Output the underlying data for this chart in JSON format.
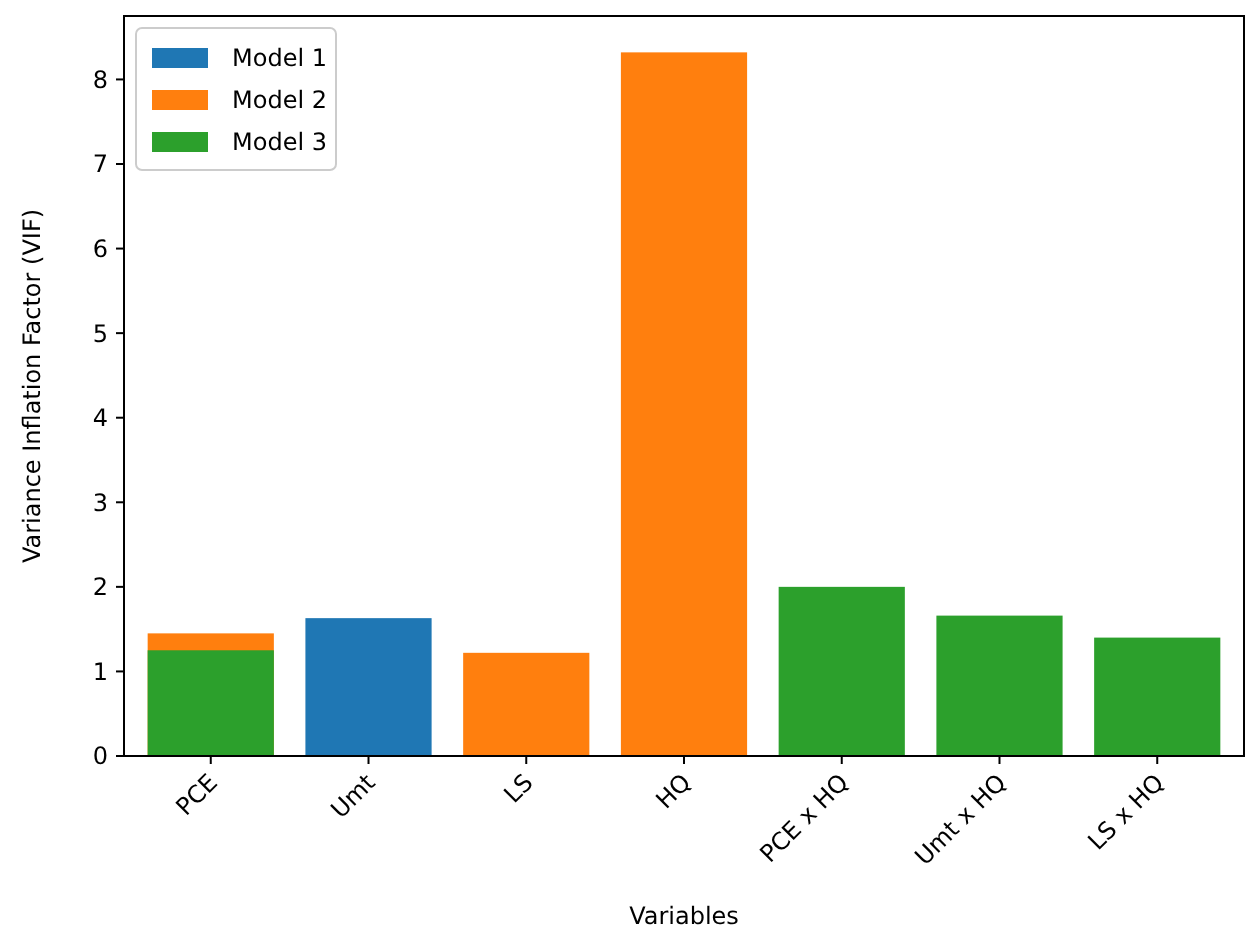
{
  "chart_data": {
    "type": "bar",
    "xlabel": "Variables",
    "ylabel": "Variance Inflation Factor (VIF)",
    "categories": [
      "PCE",
      "Umt",
      "LS",
      "HQ",
      "PCE x HQ",
      "Umt x HQ",
      "LS x HQ"
    ],
    "series": [
      {
        "name": "Model 1",
        "color": "#1f77b4",
        "values": [
          null,
          1.63,
          null,
          null,
          null,
          null,
          null
        ]
      },
      {
        "name": "Model 2",
        "color": "#ff7f0e",
        "values": [
          1.45,
          null,
          1.22,
          8.32,
          null,
          null,
          null
        ]
      },
      {
        "name": "Model 3",
        "color": "#2ca02c",
        "values": [
          1.25,
          null,
          null,
          null,
          2.0,
          1.66,
          1.4
        ]
      }
    ],
    "ylim": [
      0,
      8.75
    ],
    "yticks": [
      0,
      1,
      2,
      3,
      4,
      5,
      6,
      7,
      8
    ],
    "grid": false,
    "legend": "top left"
  }
}
